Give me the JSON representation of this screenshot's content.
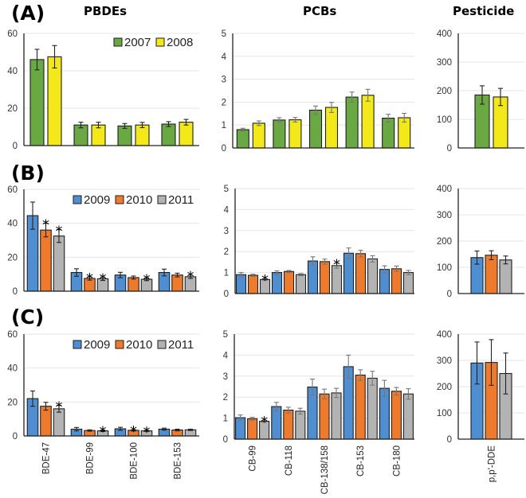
{
  "column_titles": [
    "PBDEs",
    "PCBs",
    "Pesticide"
  ],
  "panel_labels": [
    "(A)",
    "(B)",
    "(C)"
  ],
  "colors": {
    "2007": "#6aa843",
    "2008": "#f2e81a",
    "2009": "#4f8fd1",
    "2010": "#ee7a2e",
    "2011": "#b3b3b3"
  },
  "chart_data": [
    {
      "id": "A-PBDE",
      "panel": "(A)",
      "group": "PBDEs",
      "type": "bar",
      "categories": [
        "BDE-47",
        "BDE-99",
        "BDE-100",
        "BDE-153"
      ],
      "ylim": [
        0,
        60
      ],
      "yticks": [
        0,
        20,
        40,
        60
      ],
      "grid": true,
      "legend": "top-right",
      "series": [
        {
          "name": "2007",
          "values": [
            46,
            11,
            10.5,
            11.5
          ],
          "errors": [
            5.5,
            1.5,
            1.3,
            1.3
          ],
          "significant": [
            false,
            false,
            false,
            false
          ]
        },
        {
          "name": "2008",
          "values": [
            47.5,
            11,
            11,
            12.5
          ],
          "errors": [
            6,
            1.5,
            1.4,
            1.5
          ],
          "significant": [
            false,
            false,
            false,
            false
          ]
        }
      ]
    },
    {
      "id": "A-PCB",
      "panel": "(A)",
      "group": "PCBs",
      "type": "bar",
      "categories": [
        "CB-99",
        "CB-118",
        "CB-138/158",
        "CB-153",
        "CB-180"
      ],
      "ylim": [
        0,
        5
      ],
      "yticks": [
        0,
        1,
        2,
        3,
        4,
        5
      ],
      "grid": true,
      "legend": "none",
      "series": [
        {
          "name": "2007",
          "values": [
            0.8,
            1.22,
            1.65,
            2.22,
            1.3
          ],
          "errors": [
            0.06,
            0.1,
            0.18,
            0.22,
            0.17
          ],
          "significant": [
            false,
            false,
            false,
            false,
            false
          ]
        },
        {
          "name": "2008",
          "values": [
            1.08,
            1.23,
            1.77,
            2.3,
            1.32
          ],
          "errors": [
            0.1,
            0.1,
            0.22,
            0.26,
            0.19
          ],
          "significant": [
            false,
            false,
            false,
            false,
            false
          ]
        }
      ]
    },
    {
      "id": "A-Pest",
      "panel": "(A)",
      "group": "Pesticide",
      "type": "bar",
      "categories": [
        "p,p'-DDE"
      ],
      "ylim": [
        0,
        400
      ],
      "yticks": [
        0,
        100,
        200,
        300,
        400
      ],
      "grid": true,
      "legend": "none",
      "series": [
        {
          "name": "2007",
          "values": [
            185
          ],
          "errors": [
            32
          ],
          "significant": [
            false
          ]
        },
        {
          "name": "2008",
          "values": [
            178
          ],
          "errors": [
            30
          ],
          "significant": [
            false
          ]
        }
      ]
    },
    {
      "id": "B-PBDE",
      "panel": "(B)",
      "group": "PBDEs",
      "type": "bar",
      "categories": [
        "BDE-47",
        "BDE-99",
        "BDE-100",
        "BDE-153"
      ],
      "ylim": [
        0,
        60
      ],
      "yticks": [
        0,
        20,
        40,
        60
      ],
      "grid": true,
      "legend": "top-right",
      "series": [
        {
          "name": "2009",
          "values": [
            44.5,
            11,
            9.5,
            11
          ],
          "errors": [
            8,
            2.2,
            1.6,
            2
          ],
          "significant": [
            false,
            false,
            false,
            false
          ]
        },
        {
          "name": "2010",
          "values": [
            36,
            7.5,
            8,
            9.5
          ],
          "errors": [
            4,
            1,
            0.9,
            1.1
          ],
          "significant": [
            true,
            true,
            false,
            false
          ]
        },
        {
          "name": "2011",
          "values": [
            32.5,
            7.3,
            7,
            8.5
          ],
          "errors": [
            3.8,
            1,
            0.8,
            1
          ],
          "significant": [
            true,
            true,
            true,
            true
          ]
        }
      ]
    },
    {
      "id": "B-PCB",
      "panel": "(B)",
      "group": "PCBs",
      "type": "bar",
      "categories": [
        "CB-99",
        "CB-118",
        "CB-138/158",
        "CB-153",
        "CB-180"
      ],
      "ylim": [
        0,
        5
      ],
      "yticks": [
        0,
        1,
        2,
        3,
        4,
        5
      ],
      "grid": true,
      "legend": "none",
      "series": [
        {
          "name": "2009",
          "values": [
            0.9,
            1.0,
            1.55,
            1.92,
            1.15
          ],
          "errors": [
            0.1,
            0.08,
            0.2,
            0.25,
            0.17
          ],
          "significant": [
            false,
            false,
            false,
            false,
            false
          ]
        },
        {
          "name": "2010",
          "values": [
            0.87,
            1.05,
            1.52,
            1.9,
            1.18
          ],
          "errors": [
            0.05,
            0.05,
            0.12,
            0.16,
            0.13
          ],
          "significant": [
            false,
            false,
            false,
            false,
            false
          ]
        },
        {
          "name": "2011",
          "values": [
            0.67,
            0.9,
            1.33,
            1.65,
            1.0
          ],
          "errors": [
            0.05,
            0.05,
            0.12,
            0.15,
            0.1
          ],
          "significant": [
            true,
            false,
            true,
            false,
            false
          ]
        }
      ]
    },
    {
      "id": "B-Pest",
      "panel": "(B)",
      "group": "Pesticide",
      "type": "bar",
      "categories": [
        "p,p'-DDE"
      ],
      "ylim": [
        0,
        400
      ],
      "yticks": [
        0,
        100,
        200,
        300,
        400
      ],
      "grid": true,
      "legend": "none",
      "series": [
        {
          "name": "2009",
          "values": [
            137
          ],
          "errors": [
            25
          ],
          "significant": [
            false
          ]
        },
        {
          "name": "2010",
          "values": [
            146
          ],
          "errors": [
            17
          ],
          "significant": [
            false
          ]
        },
        {
          "name": "2011",
          "values": [
            128
          ],
          "errors": [
            15
          ],
          "significant": [
            false
          ]
        }
      ]
    },
    {
      "id": "C-PBDE",
      "panel": "(C)",
      "group": "PBDEs",
      "type": "bar",
      "categories": [
        "BDE-47",
        "BDE-99",
        "BDE-100",
        "BDE-153"
      ],
      "ylim": [
        0,
        60
      ],
      "yticks": [
        0,
        20,
        40,
        60
      ],
      "grid": true,
      "legend": "top-right",
      "series": [
        {
          "name": "2009",
          "values": [
            22,
            4,
            4.2,
            4
          ],
          "errors": [
            4.5,
            1,
            0.9,
            0.6
          ],
          "significant": [
            false,
            false,
            false,
            false
          ]
        },
        {
          "name": "2010",
          "values": [
            17.5,
            3.2,
            3.3,
            3.5
          ],
          "errors": [
            2.3,
            0.4,
            0.4,
            0.5
          ],
          "significant": [
            false,
            false,
            true,
            false
          ]
        },
        {
          "name": "2011",
          "values": [
            16,
            3,
            3,
            3.6
          ],
          "errors": [
            2,
            0.4,
            0.3,
            0.4
          ],
          "significant": [
            true,
            true,
            true,
            false
          ]
        }
      ]
    },
    {
      "id": "C-PCB",
      "panel": "(C)",
      "group": "PCBs",
      "type": "bar",
      "categories": [
        "CB-99",
        "CB-118",
        "CB-138/158",
        "CB-153",
        "CB-180"
      ],
      "ylim": [
        0,
        5
      ],
      "yticks": [
        0,
        1,
        2,
        3,
        4,
        5
      ],
      "grid": true,
      "legend": "none",
      "series": [
        {
          "name": "2009",
          "values": [
            1.02,
            1.55,
            2.48,
            3.45,
            2.42
          ],
          "errors": [
            0.13,
            0.2,
            0.38,
            0.55,
            0.38
          ],
          "significant": [
            false,
            false,
            false,
            false,
            false
          ]
        },
        {
          "name": "2010",
          "values": [
            0.97,
            1.38,
            2.15,
            3.05,
            2.28
          ],
          "errors": [
            0.07,
            0.14,
            0.23,
            0.25,
            0.18
          ],
          "significant": [
            false,
            false,
            false,
            false,
            false
          ]
        },
        {
          "name": "2011",
          "values": [
            0.85,
            1.33,
            2.2,
            2.9,
            2.15
          ],
          "errors": [
            0.06,
            0.14,
            0.22,
            0.33,
            0.25
          ],
          "significant": [
            true,
            false,
            false,
            false,
            false
          ]
        }
      ]
    },
    {
      "id": "C-Pest",
      "panel": "(C)",
      "group": "Pesticide",
      "type": "bar",
      "categories": [
        "p,p'-DDE"
      ],
      "ylim": [
        0,
        400
      ],
      "yticks": [
        0,
        100,
        200,
        300,
        400
      ],
      "grid": true,
      "legend": "none",
      "series": [
        {
          "name": "2009",
          "values": [
            290
          ],
          "errors": [
            80
          ],
          "significant": [
            false
          ]
        },
        {
          "name": "2010",
          "values": [
            292
          ],
          "errors": [
            87
          ],
          "significant": [
            false
          ]
        },
        {
          "name": "2011",
          "values": [
            250
          ],
          "errors": [
            78
          ],
          "significant": [
            false
          ]
        }
      ]
    }
  ]
}
